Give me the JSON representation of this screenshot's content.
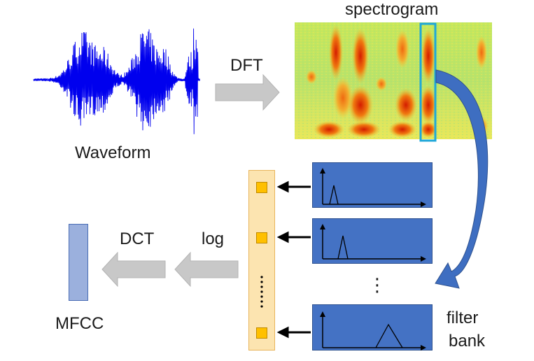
{
  "labels": {
    "spectrogram": "spectrogram",
    "dft": "DFT",
    "waveform": "Waveform",
    "dct": "DCT",
    "log": "log",
    "mfcc": "MFCC",
    "filter": "filter",
    "bank": "bank",
    "vdots": "⋮"
  },
  "colors": {
    "waveform": "#0000ee",
    "filter_panel": "#4472c4",
    "vector_fill": "#fce4b0",
    "vector_cell": "#ffc000",
    "mfcc_bar": "#9bb0dd",
    "gray_arrow": "#c8c8c8",
    "curved_arrow": "#3e6ec1",
    "highlight_frame": "#1fa7d9"
  },
  "icons": [
    "gray-block-arrow",
    "curved-arrow",
    "black-arrow",
    "triangle-filter"
  ]
}
